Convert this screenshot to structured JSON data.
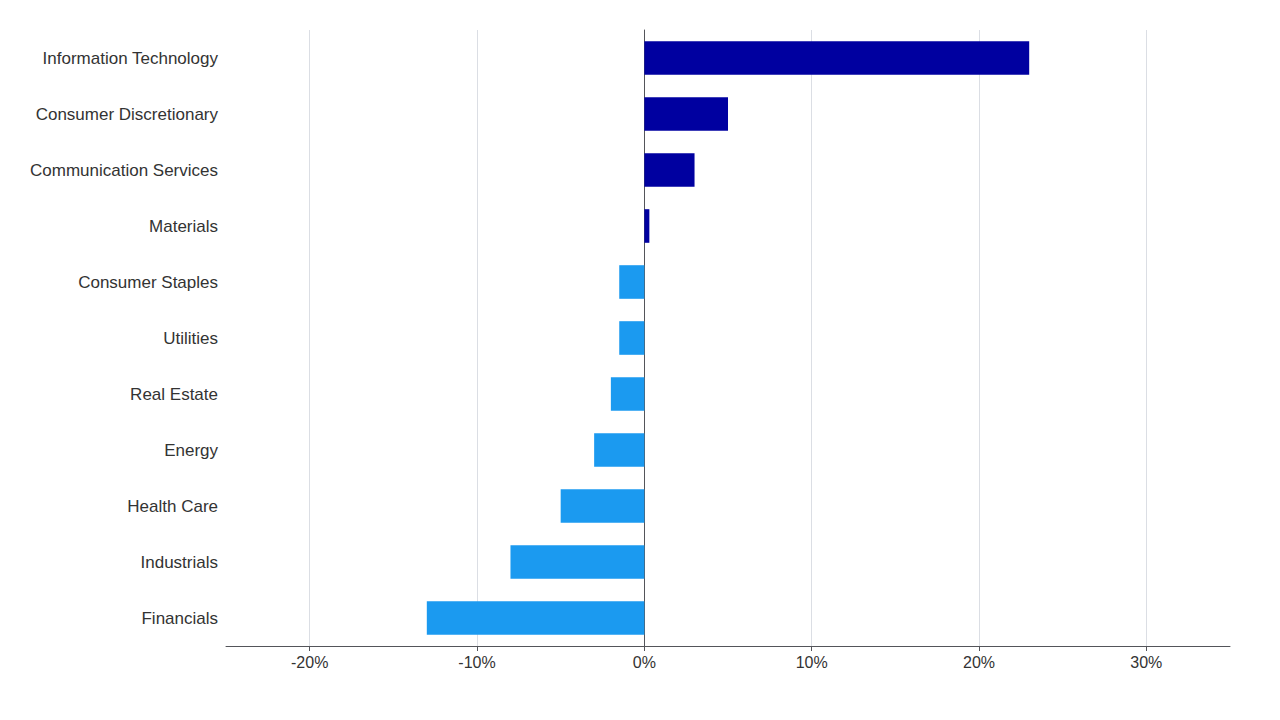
{
  "chart_data": {
    "type": "bar",
    "orientation": "horizontal",
    "categories": [
      "Information Technology",
      "Consumer Discretionary",
      "Communication Services",
      "Materials",
      "Consumer Staples",
      "Utilities",
      "Real Estate",
      "Energy",
      "Health Care",
      "Industrials",
      "Financials"
    ],
    "values": [
      23.0,
      5.0,
      3.0,
      0.3,
      -1.5,
      -1.5,
      -2.0,
      -3.0,
      -5.0,
      -8.0,
      -13.0
    ],
    "colors": [
      "#0000A0",
      "#0000A0",
      "#0000A0",
      "#0000A0",
      "#1B9AF0",
      "#1B9AF0",
      "#1B9AF0",
      "#1B9AF0",
      "#1B9AF0",
      "#1B9AF0",
      "#1B9AF0"
    ],
    "xlim": [
      -25,
      35
    ],
    "xticks": [
      {
        "value": -20,
        "label": "-20%"
      },
      {
        "value": -10,
        "label": "-10%"
      },
      {
        "value": 0,
        "label": "0%"
      },
      {
        "value": 10,
        "label": "10%"
      },
      {
        "value": 20,
        "label": "20%"
      },
      {
        "value": 30,
        "label": "30%"
      }
    ],
    "grid": true
  }
}
